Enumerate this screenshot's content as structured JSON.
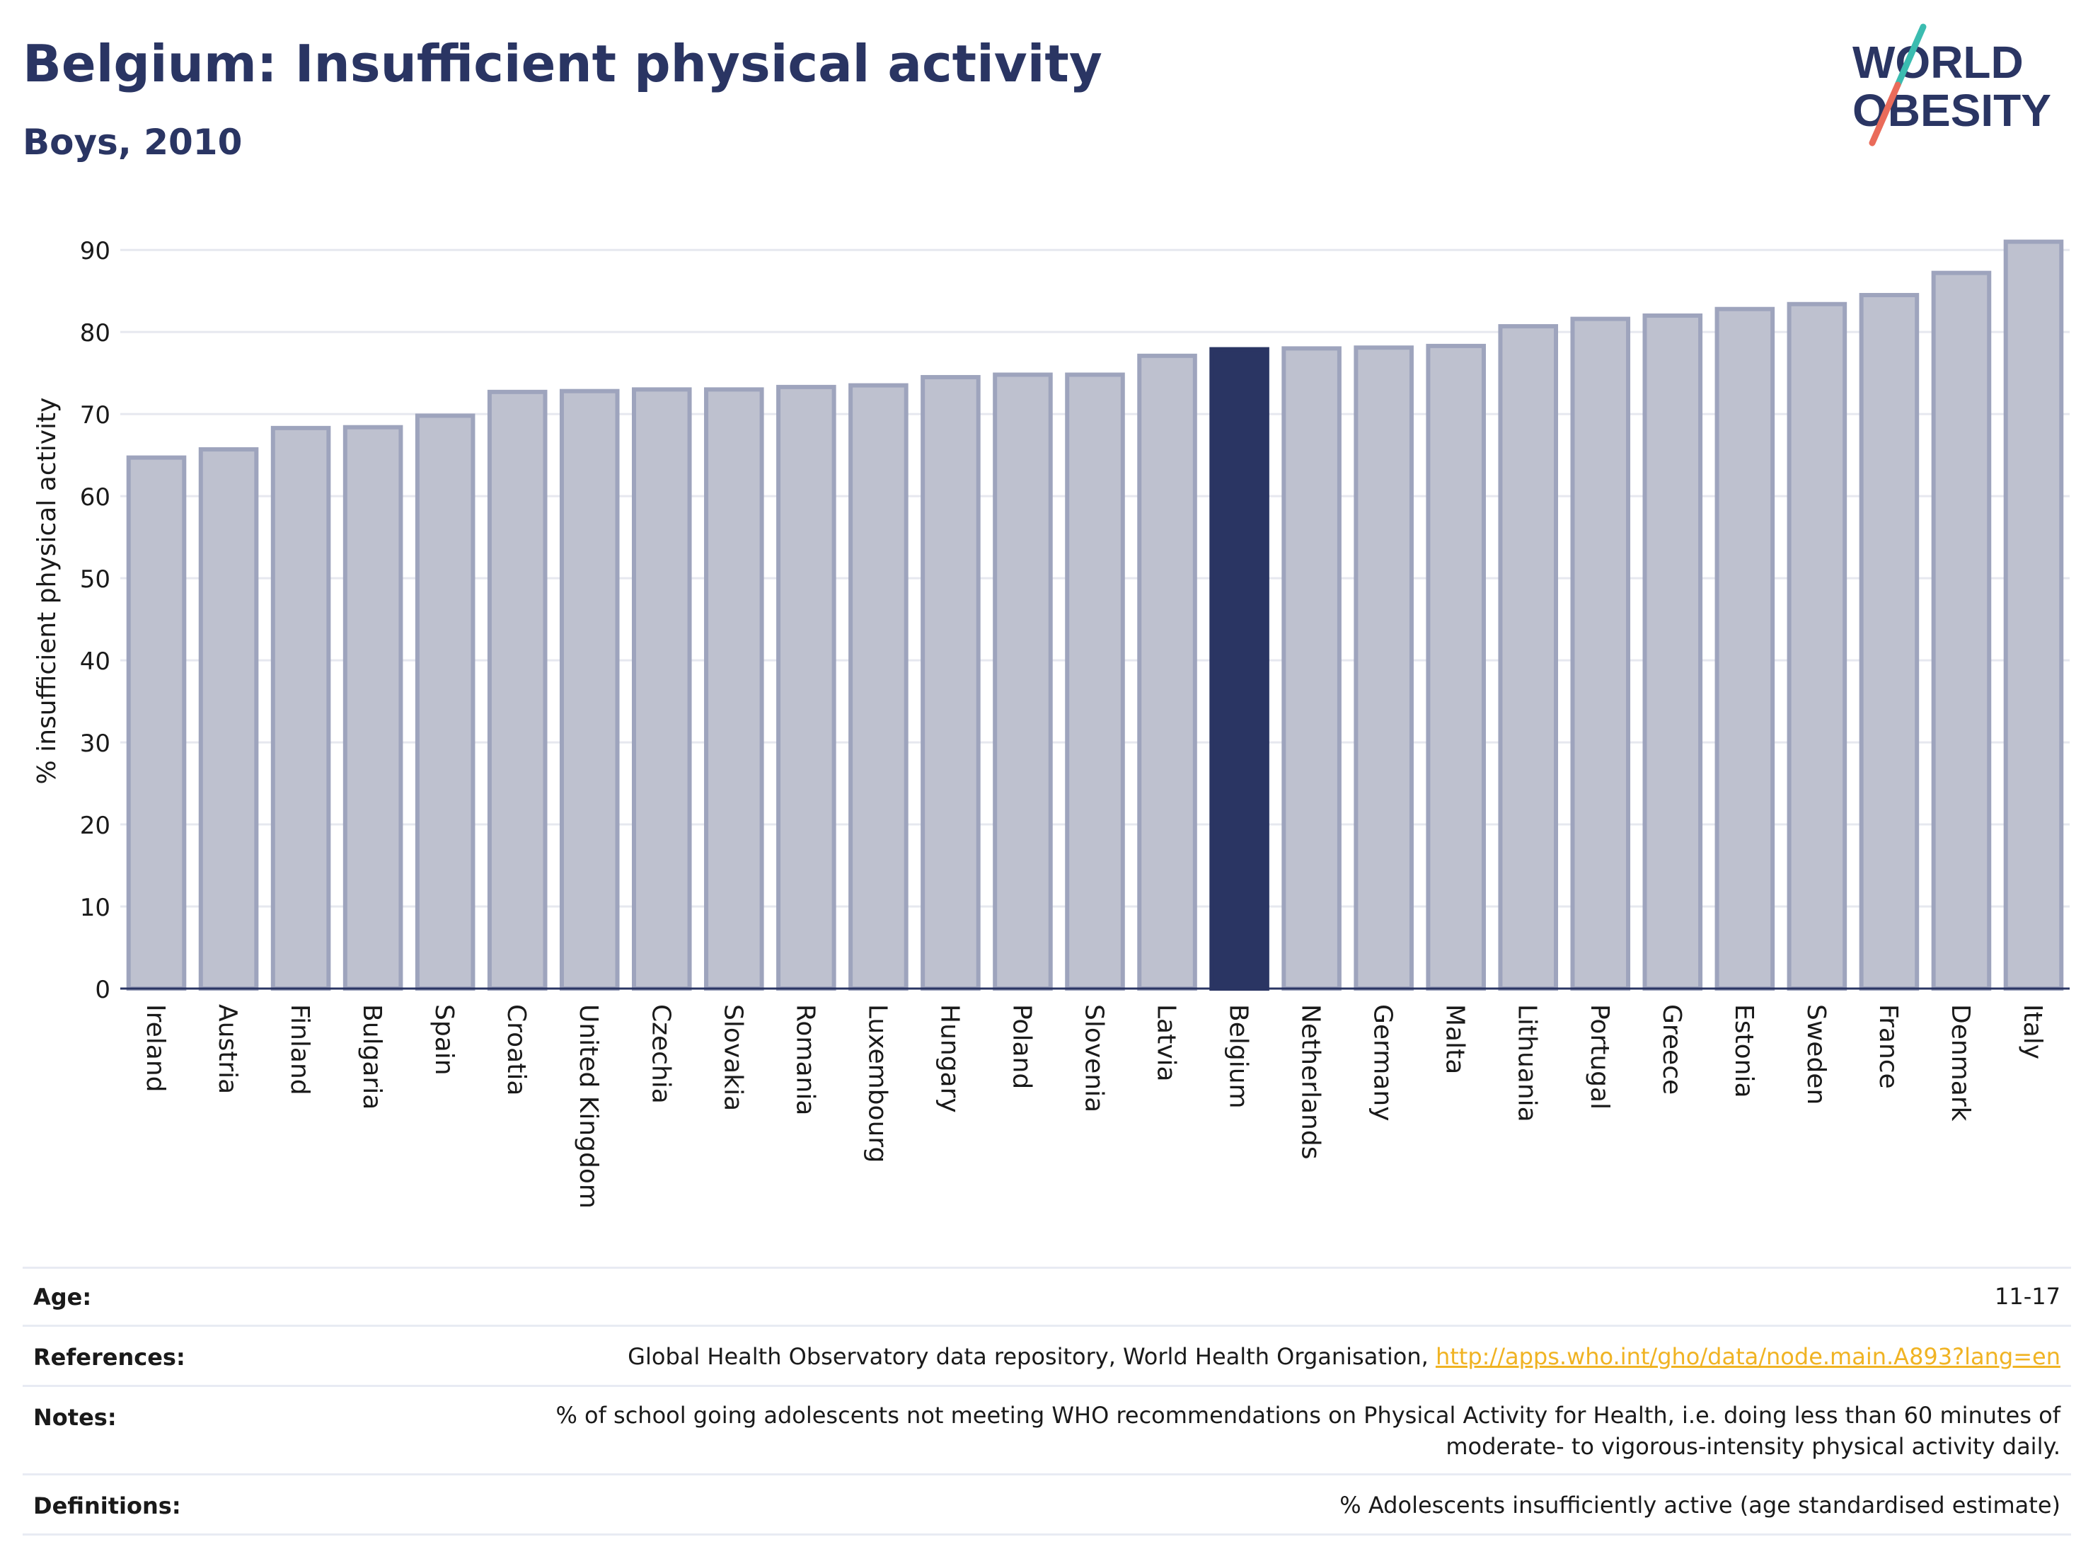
{
  "header": {
    "title": "Belgium: Insufficient physical activity",
    "subtitle": "Boys, 2010"
  },
  "logo": {
    "line1": "WORLD",
    "line2": "OBESITY"
  },
  "chart_data": {
    "type": "bar",
    "categories": [
      "Ireland",
      "Austria",
      "Finland",
      "Bulgaria",
      "Spain",
      "Croatia",
      "United Kingdom",
      "Czechia",
      "Slovakia",
      "Romania",
      "Luxembourg",
      "Hungary",
      "Poland",
      "Slovenia",
      "Latvia",
      "Belgium",
      "Netherlands",
      "Germany",
      "Malta",
      "Lithuania",
      "Portugal",
      "Greece",
      "Estonia",
      "Sweden",
      "France",
      "Denmark",
      "Italy"
    ],
    "values": [
      64.7,
      65.7,
      68.3,
      68.4,
      69.8,
      72.7,
      72.8,
      73.0,
      73.0,
      73.3,
      73.5,
      74.5,
      74.8,
      74.8,
      77.1,
      77.9,
      78.0,
      78.1,
      78.3,
      80.7,
      81.6,
      82.0,
      82.8,
      83.4,
      84.5,
      87.2,
      91.0
    ],
    "highlight": "Belgium",
    "ylabel": "% insufficient physical activity",
    "xlabel": "",
    "ylim": [
      0,
      92
    ],
    "yticks": [
      0,
      10,
      20,
      30,
      40,
      50,
      60,
      70,
      80,
      90
    ],
    "grid": true,
    "colors": {
      "bar": "#bec1cf",
      "bar_border": "#9ea4bd",
      "highlight": "#2a3563",
      "grid": "#e6e8ef",
      "axis": "#2a3563"
    }
  },
  "meta": {
    "age_label": "Age:",
    "age_value": "11-17",
    "references_label": "References:",
    "references_text": "Global Health Observatory data repository, World Health Organisation,",
    "references_link": "http://apps.who.int/gho/data/node.main.A893?lang=en",
    "notes_label": "Notes:",
    "notes_line1": "% of school going adolescents not meeting WHO recommendations on Physical Activity for Health, i.e. doing less than 60 minutes of",
    "notes_line2": "moderate- to vigorous-intensity physical activity daily.",
    "definitions_label": "Definitions:",
    "definitions_value": "% Adolescents insufficiently active (age standardised estimate)"
  }
}
